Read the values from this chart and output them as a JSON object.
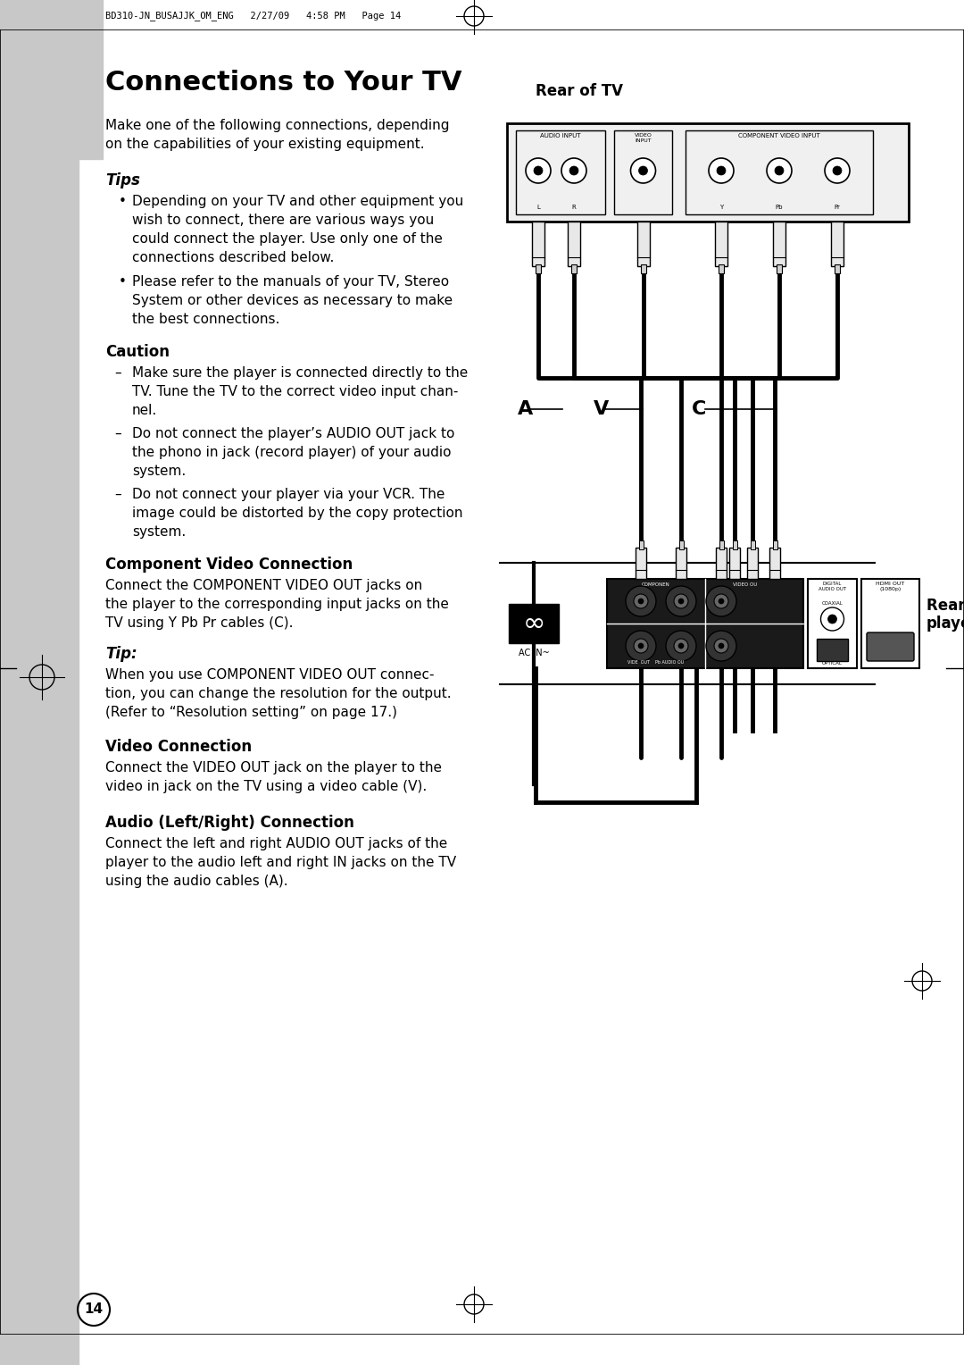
{
  "page_bg": "#ffffff",
  "sidebar_color": "#c8c8c8",
  "header_text": "BD310-JN_BUSAJJK_OM_ENG   2/27/09   4:58 PM   Page 14",
  "title": "Connections to Your TV",
  "intro_lines": [
    "Make one of the following connections, depending",
    "on the capabilities of your existing equipment."
  ],
  "tips_title": "Tips",
  "bullet1_lines": [
    "Depending on your TV and other equipment you",
    "wish to connect, there are various ways you",
    "could connect the player. Use only one of the",
    "connections described below."
  ],
  "bullet2_lines": [
    "Please refer to the manuals of your TV, Stereo",
    "System or other devices as necessary to make",
    "the best connections."
  ],
  "caution_title": "Caution",
  "caution1_lines": [
    "Make sure the player is connected directly to the",
    "TV. Tune the TV to the correct video input chan-",
    "nel."
  ],
  "caution2_lines": [
    "Do not connect the player’s AUDIO OUT jack to",
    "the phono in jack (record player) of your audio",
    "system."
  ],
  "caution3_lines": [
    "Do not connect your player via your VCR. The",
    "image could be distorted by the copy protection",
    "system."
  ],
  "comp_video_title": "Component Video Connection",
  "comp_video_lines": [
    "Connect the COMPONENT VIDEO OUT jacks on",
    "the player to the corresponding input jacks on the",
    "TV using Y Pb Pr cables (C)."
  ],
  "tip2_title": "Tip:",
  "tip2_lines": [
    "When you use COMPONENT VIDEO OUT connec-",
    "tion, you can change the resolution for the output.",
    "(Refer to “Resolution setting” on page 17.)"
  ],
  "video_title": "Video Connection",
  "video_lines": [
    "Connect the VIDEO OUT jack on the player to the",
    "video in jack on the TV using a video cable (V)."
  ],
  "audio_title": "Audio (Left/Right) Connection",
  "audio_lines": [
    "Connect the left and right AUDIO OUT jacks of the",
    "player to the audio left and right IN jacks on the TV",
    "using the audio cables (A)."
  ],
  "page_num": "14",
  "diagram_label": "Rear of TV",
  "label_A": "A",
  "label_V": "V",
  "label_C": "C",
  "label_rear_player": "Rear of the\nplayer"
}
